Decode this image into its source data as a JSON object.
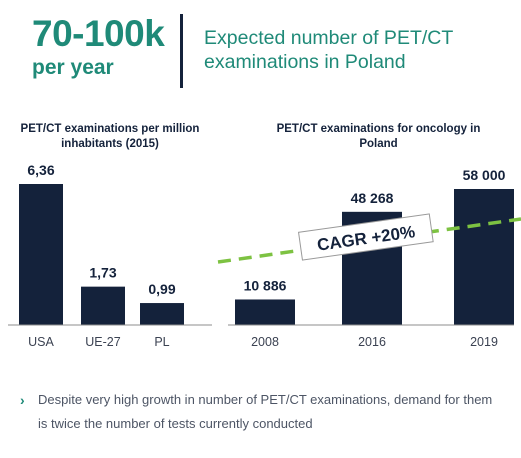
{
  "header": {
    "kpi_value": "70-100k",
    "kpi_unit": "per year",
    "headline": "Expected number of PET/CT examinations in Poland"
  },
  "colors": {
    "bar": "#14223b",
    "accent_teal": "#1f8a78",
    "trend_green": "#7dc242"
  },
  "chart_data": [
    {
      "type": "bar",
      "title": "PET/CT examinations per million inhabitants (2015)",
      "categories": [
        "USA",
        "UE-27",
        "PL"
      ],
      "values": [
        6.36,
        1.73,
        0.99
      ],
      "value_labels": [
        "6,36",
        "1,73",
        "0,99"
      ],
      "xlabel": "",
      "ylabel": "",
      "ylim": [
        0,
        6.36
      ],
      "grid": false
    },
    {
      "type": "bar",
      "title": "PET/CT examinations for oncology in Poland",
      "categories": [
        "2008",
        "2016",
        "2019"
      ],
      "values": [
        10886,
        48268,
        58000
      ],
      "value_labels": [
        "10 886",
        "48 268",
        "58 000"
      ],
      "xlabel": "",
      "ylabel": "",
      "ylim": [
        0,
        58000
      ],
      "grid": false,
      "trend": {
        "label": "CAGR +20%",
        "style": "dashed"
      }
    }
  ],
  "note": {
    "marker": "›",
    "text": "Despite very high growth in number of PET/CT examinations, demand for them is twice the number of tests currently conducted"
  }
}
